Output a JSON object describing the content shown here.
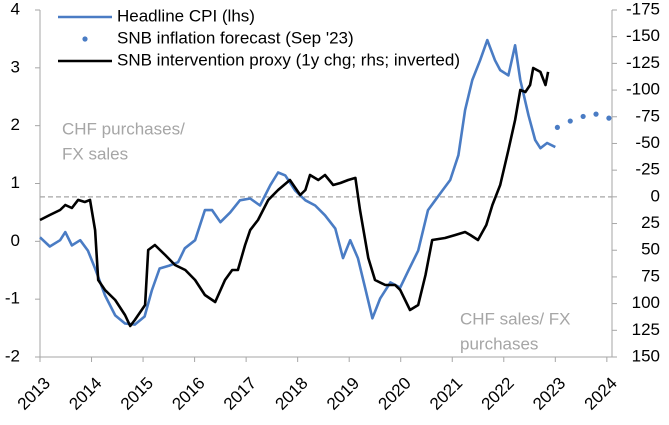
{
  "chart_data": {
    "type": "line",
    "xlim": [
      2013,
      2024.1
    ],
    "xticks": [
      2013,
      2014,
      2015,
      2016,
      2017,
      2018,
      2019,
      2020,
      2021,
      2022,
      2023,
      2024
    ],
    "ylim": [
      -2,
      4
    ],
    "yticks": [
      -2,
      -1,
      0,
      1,
      2,
      3,
      4
    ],
    "y2lim": [
      -175,
      150
    ],
    "y2_inverted": true,
    "y2ticks": [
      -175,
      -150,
      -125,
      -100,
      -75,
      -50,
      -25,
      0,
      25,
      50,
      75,
      100,
      125,
      150
    ],
    "hline": {
      "value": 0,
      "axis": "y2",
      "color": "#a6a6a6"
    },
    "annotations": [
      {
        "lines": [
          "CHF purchases/",
          "FX sales"
        ]
      },
      {
        "lines": [
          "CHF sales/ FX",
          "purchases"
        ]
      }
    ],
    "series": [
      {
        "name": "Headline CPI (lhs)",
        "color": "#4a7cc4",
        "marker": "none",
        "x": [
          2013.0,
          2013.19,
          2013.39,
          2013.49,
          2013.62,
          2013.78,
          2013.93,
          2014.07,
          2014.26,
          2014.46,
          2014.65,
          2014.84,
          2015.03,
          2015.17,
          2015.32,
          2015.51,
          2015.68,
          2015.81,
          2016.01,
          2016.2,
          2016.34,
          2016.5,
          2016.69,
          2016.88,
          2017.08,
          2017.27,
          2017.47,
          2017.62,
          2017.76,
          2017.95,
          2018.15,
          2018.34,
          2018.53,
          2018.73,
          2018.88,
          2019.02,
          2019.17,
          2019.31,
          2019.45,
          2019.6,
          2019.8,
          2019.99,
          2020.15,
          2020.34,
          2020.53,
          2020.67,
          2020.81,
          2020.96,
          2021.12,
          2021.25,
          2021.39,
          2021.54,
          2021.68,
          2021.83,
          2021.93,
          2022.09,
          2022.22,
          2022.32,
          2022.48,
          2022.61,
          2022.71,
          2022.84,
          2023.0
        ],
        "values": [
          0.07,
          -0.09,
          0.02,
          0.16,
          -0.07,
          0.02,
          -0.16,
          -0.47,
          -0.93,
          -1.28,
          -1.42,
          -1.44,
          -1.3,
          -0.85,
          -0.47,
          -0.42,
          -0.36,
          -0.12,
          0.02,
          0.54,
          0.54,
          0.33,
          0.5,
          0.71,
          0.74,
          0.62,
          0.97,
          1.19,
          1.14,
          0.88,
          0.71,
          0.62,
          0.45,
          0.22,
          -0.29,
          0.02,
          -0.29,
          -0.81,
          -1.33,
          -0.99,
          -0.71,
          -0.8,
          -0.5,
          -0.16,
          0.54,
          0.71,
          0.88,
          1.06,
          1.49,
          2.27,
          2.79,
          3.13,
          3.48,
          3.13,
          2.96,
          2.87,
          3.39,
          2.79,
          2.18,
          1.75,
          1.61,
          1.7,
          1.63
        ]
      },
      {
        "name": "SNB inflation forecast (Sep '23)",
        "color": "#4a7cc4",
        "marker": "dot",
        "x": [
          2023.04,
          2023.29,
          2023.54,
          2023.79,
          2024.04
        ],
        "values": [
          1.97,
          2.08,
          2.16,
          2.2,
          2.13
        ]
      },
      {
        "name": "SNB intervention proxy (1y chg; rhs; inverted)",
        "color": "#000000",
        "marker": "none",
        "axis": "y2",
        "x": [
          2013.0,
          2013.19,
          2013.39,
          2013.49,
          2013.62,
          2013.74,
          2013.87,
          2013.97,
          2014.07,
          2014.13,
          2014.26,
          2014.46,
          2014.65,
          2014.75,
          2014.84,
          2015.04,
          2015.1,
          2015.23,
          2015.43,
          2015.62,
          2015.82,
          2016.01,
          2016.2,
          2016.4,
          2016.59,
          2016.73,
          2016.84,
          2016.98,
          2017.08,
          2017.23,
          2017.43,
          2017.62,
          2017.85,
          2018.05,
          2018.15,
          2018.24,
          2018.4,
          2018.53,
          2018.69,
          2018.83,
          2018.98,
          2019.12,
          2019.21,
          2019.37,
          2019.5,
          2019.7,
          2019.89,
          2019.99,
          2020.18,
          2020.34,
          2020.48,
          2020.61,
          2020.86,
          2021.06,
          2021.25,
          2021.35,
          2021.5,
          2021.66,
          2021.78,
          2021.93,
          2022.09,
          2022.22,
          2022.32,
          2022.42,
          2022.51,
          2022.57,
          2022.71,
          2022.81,
          2022.86
        ],
        "values": [
          21.7,
          17.0,
          12.3,
          7.6,
          10.4,
          2.9,
          4.8,
          2.9,
          31.1,
          77.9,
          87.2,
          96.6,
          110.7,
          121.0,
          115.3,
          101.3,
          49.8,
          45.1,
          54.5,
          63.8,
          68.5,
          77.9,
          91.9,
          98.5,
          77.9,
          68.5,
          68.5,
          45.1,
          31.1,
          21.7,
          2.9,
          -6.4,
          -15.8,
          -1.7,
          -6.4,
          -20.5,
          -15.8,
          -20.5,
          -11.1,
          -13.0,
          -15.8,
          -17.7,
          12.3,
          57.3,
          77.9,
          82.6,
          82.6,
          87.2,
          106.0,
          101.3,
          73.2,
          40.4,
          38.5,
          35.7,
          32.9,
          35.7,
          40.4,
          26.4,
          7.6,
          -11.1,
          -43.9,
          -72.0,
          -100.1,
          -98.2,
          -104.8,
          -120.7,
          -117.0,
          -104.8,
          -117.0
        ]
      }
    ]
  }
}
